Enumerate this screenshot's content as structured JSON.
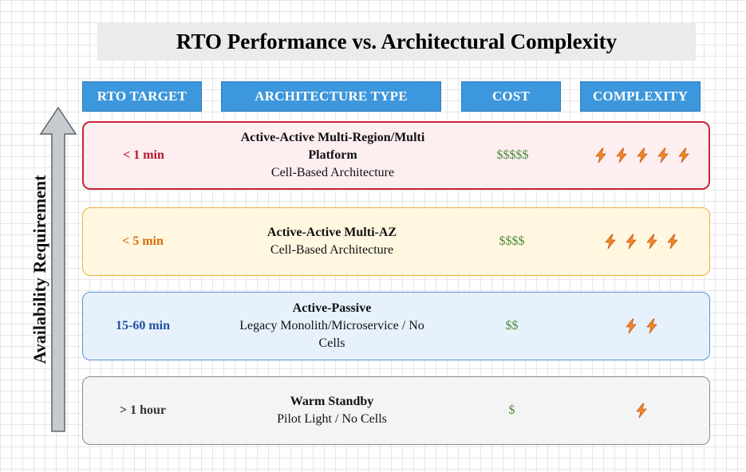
{
  "title": "RTO Performance vs. Architectural Complexity",
  "headers": {
    "rto": "RTO TARGET",
    "arch": "ARCHITECTURE TYPE",
    "cost": "COST",
    "complexity": "COMPLEXITY"
  },
  "axis_label": "Availability Requirement",
  "colors": {
    "header_bg": "#3d97dc",
    "bolt_fill": "#f08a24",
    "cost_text": "#4c8a3a"
  },
  "rows": [
    {
      "rto": "< 1 min",
      "arch_main_line1": "Active-Active Multi-Region/Multi",
      "arch_main_line2": "Platform",
      "arch_sub": "Cell-Based Architecture",
      "cost": "$$$$$",
      "complexity": 5,
      "border_color": "#c9243a"
    },
    {
      "rto": "< 5 min",
      "arch_main": "Active-Active Multi-AZ",
      "arch_sub": "Cell-Based Architecture",
      "cost": "$$$$",
      "complexity": 4,
      "border_color": "#e8b23c"
    },
    {
      "rto": "15-60 min",
      "arch_main": "Active-Passive",
      "arch_sub_line1": "Legacy Monolith/Microservice / No",
      "arch_sub_line2": "Cells",
      "cost": "$$",
      "complexity": 2,
      "border_color": "#5a92d8"
    },
    {
      "rto": "> 1 hour",
      "arch_main": "Warm Standby",
      "arch_sub": "Pilot Light / No Cells",
      "cost": "$",
      "complexity": 1,
      "border_color": "#8a8a8a"
    }
  ]
}
